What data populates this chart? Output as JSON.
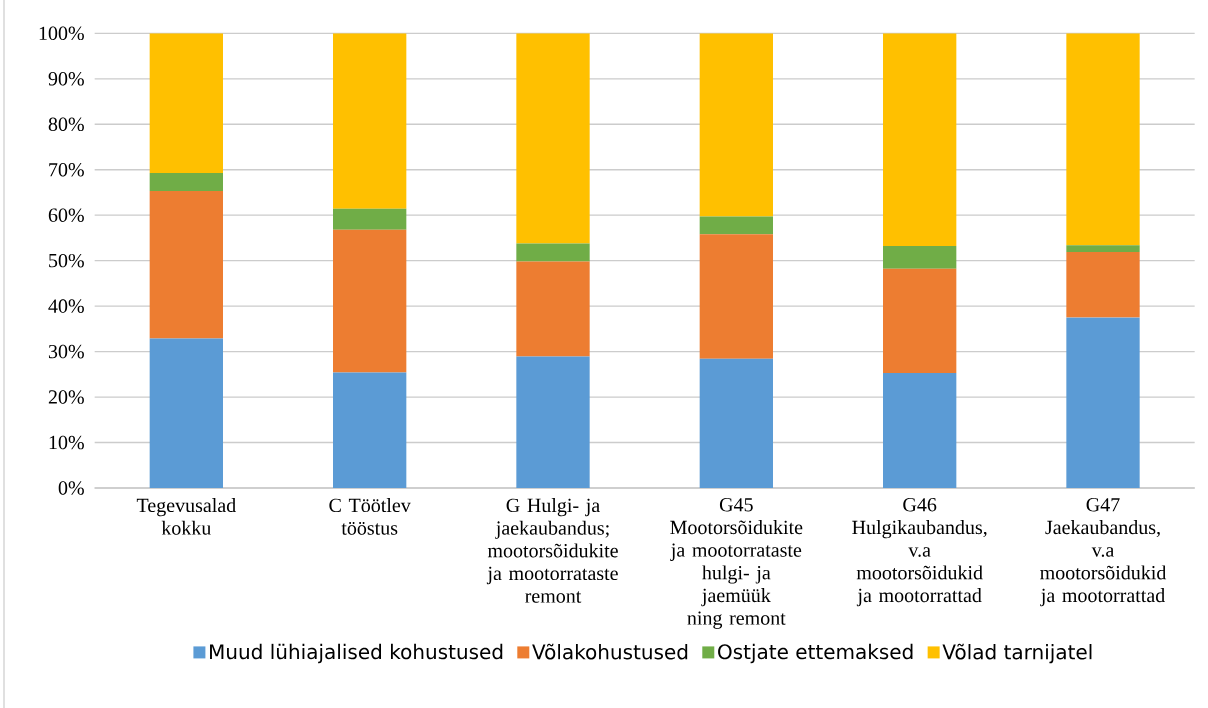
{
  "chart_data": {
    "type": "bar",
    "stacked": true,
    "categories": [
      "Tegevusalad kokku",
      "C Töötlev tööstus",
      "G Hulgi- ja jaekaubandus; mootorsõidukite ja mootorrataste remont",
      "G45 Mootorsõidukite ja mootorrataste hulgi- ja jaemüük ning remont",
      "G46 Hulgikaubandus, v.a mootorsõidukid ja mootorrattad",
      "G47 Jaekaubandus, v.a mootorsõidukid ja mootorrattad"
    ],
    "series": [
      {
        "name": "Muud lühiajalised kohustused",
        "color": "#5b9bd5",
        "values": [
          32.9,
          25.4,
          28.9,
          28.4,
          25.3,
          37.5
        ]
      },
      {
        "name": "Võlakohustused",
        "color": "#ed7d31",
        "values": [
          32.4,
          31.4,
          20.9,
          27.4,
          22.9,
          14.4
        ]
      },
      {
        "name": "Ostjate ettemaksed",
        "color": "#70ad47",
        "values": [
          4.0,
          4.6,
          4.0,
          3.9,
          5.0,
          1.5
        ]
      },
      {
        "name": "Võlad tarnijatel",
        "color": "#ffc000",
        "values": [
          30.7,
          38.6,
          46.2,
          40.3,
          46.8,
          46.6
        ]
      }
    ],
    "ylim": [
      0,
      100
    ],
    "yticks": [
      {
        "value": 0,
        "label": "0%"
      },
      {
        "value": 10,
        "label": "10%"
      },
      {
        "value": 20,
        "label": "20%"
      },
      {
        "value": 30,
        "label": "30%"
      },
      {
        "value": 40,
        "label": "40%"
      },
      {
        "value": 50,
        "label": "50%"
      },
      {
        "value": 60,
        "label": "60%"
      },
      {
        "value": 70,
        "label": "70%"
      },
      {
        "value": 80,
        "label": "80%"
      },
      {
        "value": 90,
        "label": "90%"
      },
      {
        "value": 100,
        "label": "100%"
      }
    ],
    "grid": "y",
    "legend": "bottom"
  }
}
